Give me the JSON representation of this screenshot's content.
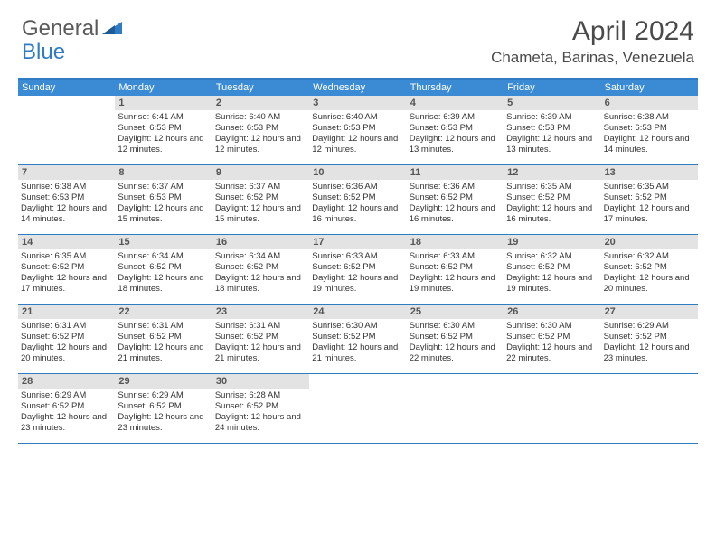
{
  "logo": {
    "text1": "General",
    "text2": "Blue"
  },
  "title": "April 2024",
  "location": "Chameta, Barinas, Venezuela",
  "weekdays": [
    "Sunday",
    "Monday",
    "Tuesday",
    "Wednesday",
    "Thursday",
    "Friday",
    "Saturday"
  ],
  "colors": {
    "header_bar": "#3b8bd4",
    "border": "#2f7cc4",
    "daynum_bg": "#e3e3e3",
    "text": "#333333",
    "title": "#4a4a4a"
  },
  "weeks": [
    [
      {
        "n": "",
        "sr": "",
        "ss": "",
        "dl": ""
      },
      {
        "n": "1",
        "sr": "Sunrise: 6:41 AM",
        "ss": "Sunset: 6:53 PM",
        "dl": "Daylight: 12 hours and 12 minutes."
      },
      {
        "n": "2",
        "sr": "Sunrise: 6:40 AM",
        "ss": "Sunset: 6:53 PM",
        "dl": "Daylight: 12 hours and 12 minutes."
      },
      {
        "n": "3",
        "sr": "Sunrise: 6:40 AM",
        "ss": "Sunset: 6:53 PM",
        "dl": "Daylight: 12 hours and 12 minutes."
      },
      {
        "n": "4",
        "sr": "Sunrise: 6:39 AM",
        "ss": "Sunset: 6:53 PM",
        "dl": "Daylight: 12 hours and 13 minutes."
      },
      {
        "n": "5",
        "sr": "Sunrise: 6:39 AM",
        "ss": "Sunset: 6:53 PM",
        "dl": "Daylight: 12 hours and 13 minutes."
      },
      {
        "n": "6",
        "sr": "Sunrise: 6:38 AM",
        "ss": "Sunset: 6:53 PM",
        "dl": "Daylight: 12 hours and 14 minutes."
      }
    ],
    [
      {
        "n": "7",
        "sr": "Sunrise: 6:38 AM",
        "ss": "Sunset: 6:53 PM",
        "dl": "Daylight: 12 hours and 14 minutes."
      },
      {
        "n": "8",
        "sr": "Sunrise: 6:37 AM",
        "ss": "Sunset: 6:53 PM",
        "dl": "Daylight: 12 hours and 15 minutes."
      },
      {
        "n": "9",
        "sr": "Sunrise: 6:37 AM",
        "ss": "Sunset: 6:52 PM",
        "dl": "Daylight: 12 hours and 15 minutes."
      },
      {
        "n": "10",
        "sr": "Sunrise: 6:36 AM",
        "ss": "Sunset: 6:52 PM",
        "dl": "Daylight: 12 hours and 16 minutes."
      },
      {
        "n": "11",
        "sr": "Sunrise: 6:36 AM",
        "ss": "Sunset: 6:52 PM",
        "dl": "Daylight: 12 hours and 16 minutes."
      },
      {
        "n": "12",
        "sr": "Sunrise: 6:35 AM",
        "ss": "Sunset: 6:52 PM",
        "dl": "Daylight: 12 hours and 16 minutes."
      },
      {
        "n": "13",
        "sr": "Sunrise: 6:35 AM",
        "ss": "Sunset: 6:52 PM",
        "dl": "Daylight: 12 hours and 17 minutes."
      }
    ],
    [
      {
        "n": "14",
        "sr": "Sunrise: 6:35 AM",
        "ss": "Sunset: 6:52 PM",
        "dl": "Daylight: 12 hours and 17 minutes."
      },
      {
        "n": "15",
        "sr": "Sunrise: 6:34 AM",
        "ss": "Sunset: 6:52 PM",
        "dl": "Daylight: 12 hours and 18 minutes."
      },
      {
        "n": "16",
        "sr": "Sunrise: 6:34 AM",
        "ss": "Sunset: 6:52 PM",
        "dl": "Daylight: 12 hours and 18 minutes."
      },
      {
        "n": "17",
        "sr": "Sunrise: 6:33 AM",
        "ss": "Sunset: 6:52 PM",
        "dl": "Daylight: 12 hours and 19 minutes."
      },
      {
        "n": "18",
        "sr": "Sunrise: 6:33 AM",
        "ss": "Sunset: 6:52 PM",
        "dl": "Daylight: 12 hours and 19 minutes."
      },
      {
        "n": "19",
        "sr": "Sunrise: 6:32 AM",
        "ss": "Sunset: 6:52 PM",
        "dl": "Daylight: 12 hours and 19 minutes."
      },
      {
        "n": "20",
        "sr": "Sunrise: 6:32 AM",
        "ss": "Sunset: 6:52 PM",
        "dl": "Daylight: 12 hours and 20 minutes."
      }
    ],
    [
      {
        "n": "21",
        "sr": "Sunrise: 6:31 AM",
        "ss": "Sunset: 6:52 PM",
        "dl": "Daylight: 12 hours and 20 minutes."
      },
      {
        "n": "22",
        "sr": "Sunrise: 6:31 AM",
        "ss": "Sunset: 6:52 PM",
        "dl": "Daylight: 12 hours and 21 minutes."
      },
      {
        "n": "23",
        "sr": "Sunrise: 6:31 AM",
        "ss": "Sunset: 6:52 PM",
        "dl": "Daylight: 12 hours and 21 minutes."
      },
      {
        "n": "24",
        "sr": "Sunrise: 6:30 AM",
        "ss": "Sunset: 6:52 PM",
        "dl": "Daylight: 12 hours and 21 minutes."
      },
      {
        "n": "25",
        "sr": "Sunrise: 6:30 AM",
        "ss": "Sunset: 6:52 PM",
        "dl": "Daylight: 12 hours and 22 minutes."
      },
      {
        "n": "26",
        "sr": "Sunrise: 6:30 AM",
        "ss": "Sunset: 6:52 PM",
        "dl": "Daylight: 12 hours and 22 minutes."
      },
      {
        "n": "27",
        "sr": "Sunrise: 6:29 AM",
        "ss": "Sunset: 6:52 PM",
        "dl": "Daylight: 12 hours and 23 minutes."
      }
    ],
    [
      {
        "n": "28",
        "sr": "Sunrise: 6:29 AM",
        "ss": "Sunset: 6:52 PM",
        "dl": "Daylight: 12 hours and 23 minutes."
      },
      {
        "n": "29",
        "sr": "Sunrise: 6:29 AM",
        "ss": "Sunset: 6:52 PM",
        "dl": "Daylight: 12 hours and 23 minutes."
      },
      {
        "n": "30",
        "sr": "Sunrise: 6:28 AM",
        "ss": "Sunset: 6:52 PM",
        "dl": "Daylight: 12 hours and 24 minutes."
      },
      {
        "n": "",
        "sr": "",
        "ss": "",
        "dl": ""
      },
      {
        "n": "",
        "sr": "",
        "ss": "",
        "dl": ""
      },
      {
        "n": "",
        "sr": "",
        "ss": "",
        "dl": ""
      },
      {
        "n": "",
        "sr": "",
        "ss": "",
        "dl": ""
      }
    ]
  ]
}
